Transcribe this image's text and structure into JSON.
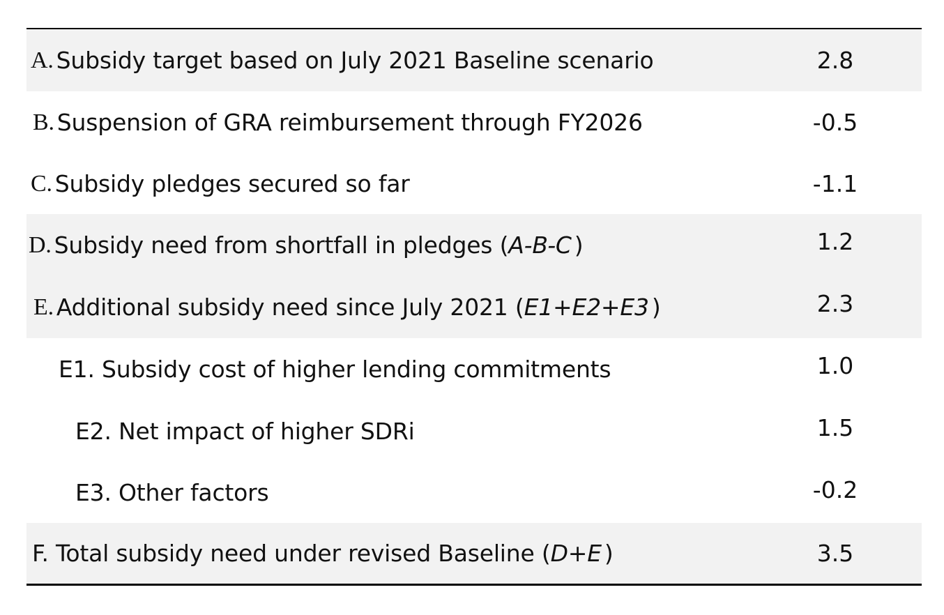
{
  "rows": [
    {
      "letter": "A.",
      "text": "Subsidy target based on July 2021 Baseline scenario",
      "formula": "",
      "value": "2.8"
    },
    {
      "letter": "B.",
      "text": "Suspension of GRA reimbursement through FY2026",
      "formula": "",
      "value": "-0.5"
    },
    {
      "letter": "C.",
      "text": "Subsidy pledges secured so far",
      "formula": "",
      "value": "-1.1"
    },
    {
      "letter": "D.",
      "text": "Subsidy need from shortfall in pledges (",
      "formula": "A-B-C",
      "close": ")",
      "value": "1.2"
    },
    {
      "letter": "E.",
      "text": "Additional subsidy need since July 2021 (",
      "formula": "E1+E2+E3",
      "close": ")",
      "value": "2.3"
    },
    {
      "letter": "",
      "text": "E1. Subsidy cost of higher lending commitments",
      "formula": "",
      "value": "1.0"
    },
    {
      "letter": "",
      "text": "E2. Net impact of higher SDRi",
      "formula": "",
      "value": "1.5"
    },
    {
      "letter": "",
      "text": "E3. Other factors",
      "formula": "",
      "value": "-0.2"
    },
    {
      "letter": "",
      "text": "F. Total subsidy need under revised Baseline (",
      "formula": "D+E",
      "close": ")",
      "value": "3.5"
    }
  ]
}
